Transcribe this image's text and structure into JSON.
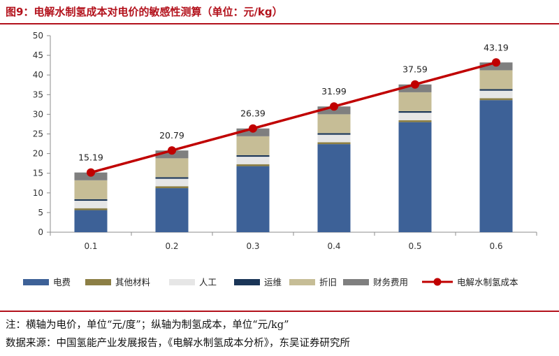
{
  "header": {
    "title": "图9：电解水制氢成本对电价的敏感性测算（单位：元/kg）"
  },
  "footer": {
    "note": "注：横轴为电价，单位“元/度”；纵轴为制氢成本，单位“元/kg”",
    "source": "数据来源：中国氢能产业发展报告，《电解水制氢成本分析》，东吴证券研究所"
  },
  "colors": {
    "title": "#b3121c",
    "电费": "#3d6197",
    "其他材料": "#8c7f45",
    "人工": "#e6e6e6",
    "运维": "#1a3557",
    "折旧": "#c6bd96",
    "财务费用": "#7f7f7f",
    "电解水制氢成本": "#c00000"
  },
  "chart_data": {
    "type": "bar",
    "stacked": true,
    "categories": [
      "0.1",
      "0.2",
      "0.3",
      "0.4",
      "0.5",
      "0.6"
    ],
    "ylim": [
      0,
      50
    ],
    "yticks": [
      0,
      5,
      10,
      15,
      20,
      25,
      30,
      35,
      40,
      45,
      50
    ],
    "xlabel": "",
    "ylabel": "",
    "grid": false,
    "legend_position": "bottom",
    "series": [
      {
        "name": "电费",
        "kind": "bar",
        "values": [
          5.6,
          11.2,
          16.8,
          22.4,
          28.0,
          33.6
        ]
      },
      {
        "name": "其他材料",
        "kind": "bar",
        "values": [
          0.5,
          0.5,
          0.5,
          0.5,
          0.5,
          0.5
        ]
      },
      {
        "name": "人工",
        "kind": "bar",
        "values": [
          1.9,
          1.9,
          1.9,
          1.9,
          1.9,
          1.9
        ]
      },
      {
        "name": "运维",
        "kind": "bar",
        "values": [
          0.4,
          0.4,
          0.4,
          0.4,
          0.4,
          0.4
        ]
      },
      {
        "name": "折旧",
        "kind": "bar",
        "values": [
          4.8,
          4.8,
          4.8,
          4.8,
          4.8,
          4.8
        ]
      },
      {
        "name": "财务费用",
        "kind": "bar",
        "values": [
          1.99,
          1.99,
          1.99,
          1.99,
          1.99,
          1.99
        ]
      },
      {
        "name": "电解水制氢成本",
        "kind": "line",
        "values": [
          15.19,
          20.79,
          26.39,
          31.99,
          37.59,
          43.19
        ]
      }
    ],
    "data_labels": [
      "15.19",
      "20.79",
      "26.39",
      "31.99",
      "37.59",
      "43.19"
    ]
  }
}
